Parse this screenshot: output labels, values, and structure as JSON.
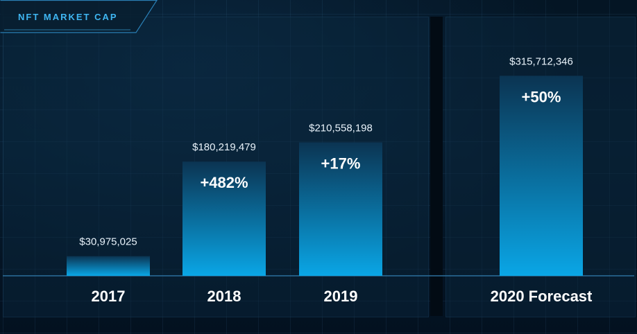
{
  "header": {
    "title": "NFT MARKET CAP"
  },
  "colors": {
    "accent": "#3fb6f2",
    "bar_top": "#0b3452",
    "bar_bottom": "#0aa6e6",
    "text": "#ffffff"
  },
  "chart_data": {
    "type": "bar",
    "title": "NFT MARKET CAP",
    "categories": [
      "2017",
      "2018",
      "2019",
      "2020 Forecast"
    ],
    "values": [
      30975025,
      180219479,
      210558198,
      315712346
    ],
    "value_labels": [
      "$30,975,025",
      "$180,219,479",
      "$210,558,198",
      "$315,712,346"
    ],
    "change_labels": [
      "",
      "+482%",
      "+17%",
      "+50%"
    ],
    "ylim": [
      0,
      350000000
    ],
    "xlabel": "",
    "ylabel": "",
    "grid": true,
    "legend": "none"
  }
}
